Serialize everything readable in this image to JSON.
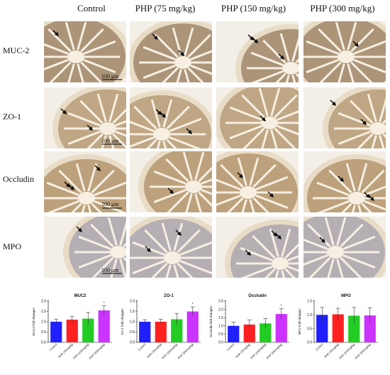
{
  "figure": {
    "columns": [
      "Control",
      "PHP (75 mg/kg)",
      "PHP (150 mg/kg)",
      "PHP (300 mg/kg)"
    ],
    "rows": [
      {
        "label": "MUC-2",
        "scale_bar": "100 μm",
        "scale_col": 0
      },
      {
        "label": "ZO-1",
        "scale_bar": "100 μm",
        "scale_col": 0
      },
      {
        "label": "Occludin",
        "scale_bar": "100 μm",
        "scale_col": 0
      },
      {
        "label": "MPO",
        "scale_bar": "100 μm",
        "scale_col": 0
      }
    ],
    "colors": {
      "tissue_muc2": "#7a5a3a",
      "tissue_zo1": "#9c7a4e",
      "tissue_occludin": "#98713f",
      "tissue_mpo": "#8a8aa6",
      "background": "#f3efe6"
    }
  },
  "chart_data": [
    {
      "type": "bar",
      "title": "MUC2",
      "ylabel": "MUC2 fold changes",
      "categories": [
        "Control",
        "PHP (75mg/kg)",
        "PHP (150mg/kg)",
        "PHP (300mg/kg)"
      ],
      "values": [
        1.0,
        1.1,
        1.15,
        1.55
      ],
      "errors": [
        0.12,
        0.15,
        0.3,
        0.22
      ],
      "significance": [
        "",
        "",
        "",
        "*"
      ],
      "ylim": [
        0,
        2.0
      ],
      "yticks": [
        "0.0",
        "0.5",
        "1.0",
        "1.5",
        "2.0"
      ],
      "colors": [
        "#1f1fff",
        "#ff2020",
        "#22cc22",
        "#cc33ff"
      ]
    },
    {
      "type": "bar",
      "title": "ZO-1",
      "ylabel": "ZO-1 fold changes",
      "categories": [
        "Control",
        "PHP (75mg/kg)",
        "PHP (150mg/kg)",
        "PHP (300mg/kg)"
      ],
      "values": [
        1.0,
        1.0,
        1.12,
        1.5
      ],
      "errors": [
        0.1,
        0.12,
        0.28,
        0.22
      ],
      "significance": [
        "",
        "",
        "",
        "*"
      ],
      "ylim": [
        0,
        2.0
      ],
      "yticks": [
        "0.0",
        "0.5",
        "1.0",
        "1.5",
        "2.0"
      ],
      "colors": [
        "#1f1fff",
        "#ff2020",
        "#22cc22",
        "#cc33ff"
      ]
    },
    {
      "type": "bar",
      "title": "Occludin",
      "ylabel": "Occludin fold changes",
      "categories": [
        "Control",
        "PHP (75mg/kg)",
        "PHP (150mg/kg)",
        "PHP (300mg/kg)"
      ],
      "values": [
        1.0,
        1.08,
        1.15,
        1.72
      ],
      "errors": [
        0.22,
        0.28,
        0.3,
        0.32
      ],
      "significance": [
        "",
        "",
        "",
        "*"
      ],
      "ylim": [
        0,
        2.5
      ],
      "yticks": [
        "0.0",
        "0.5",
        "1.0",
        "1.5",
        "2.0",
        "2.5"
      ],
      "colors": [
        "#1f1fff",
        "#ff2020",
        "#22cc22",
        "#cc33ff"
      ]
    },
    {
      "type": "bar",
      "title": "MPO",
      "ylabel": "MPO fold changes",
      "categories": [
        "Control",
        "PHP (75mg/kg)",
        "PHP (150mg/kg)",
        "PHP (300mg/kg)"
      ],
      "values": [
        1.0,
        1.02,
        0.97,
        0.98
      ],
      "errors": [
        0.27,
        0.22,
        0.3,
        0.28
      ],
      "significance": [
        "",
        "",
        "",
        ""
      ],
      "ylim": [
        0,
        1.5
      ],
      "yticks": [
        "0.0",
        "0.5",
        "1.0",
        "1.5"
      ],
      "colors": [
        "#1f1fff",
        "#ff2020",
        "#22cc22",
        "#cc33ff"
      ]
    }
  ]
}
